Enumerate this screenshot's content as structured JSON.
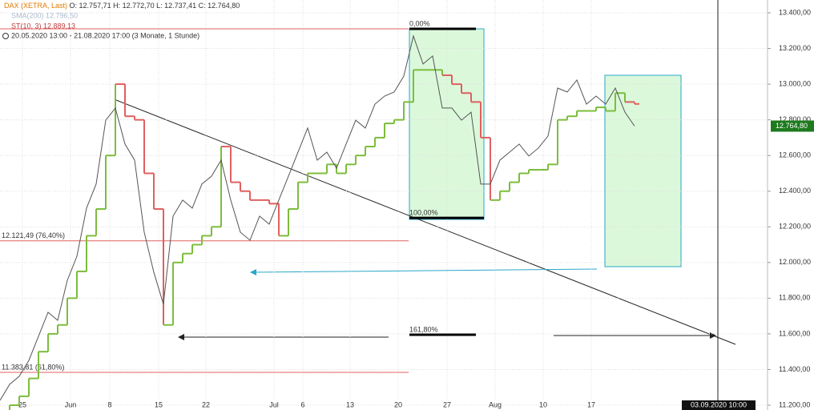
{
  "chart_data": {
    "type": "line",
    "header": {
      "instrument": "DAX (XETRA, Last)",
      "ohlc": "O: 12.757,71  H: 12.772,70  L: 12.737,41  C: 12.764,80",
      "sma": "SMA(200) 12.796,50",
      "st": "ST(10, 3) 12.889,13",
      "range": "20.05.2020 13:00 - 21.08.2020 17:00  (3 Monate, 1 Stunde)"
    },
    "series": [
      {
        "name": "DAX (XETRA, Last)",
        "color": "#555555",
        "values": [
          11227,
          11317,
          11362,
          11451,
          11586,
          11721,
          11676,
          11900,
          12035,
          12305,
          12440,
          12798,
          12866,
          12664,
          12574,
          12170,
          11945,
          11766,
          12260,
          12350,
          12305,
          12440,
          12484,
          12574,
          12350,
          12170,
          12125,
          12260,
          12215,
          12350,
          12484,
          12619,
          12754,
          12574,
          12619,
          12529,
          12664,
          12798,
          12754,
          12888,
          12933,
          12956,
          13045,
          13270,
          13113,
          13158,
          12866,
          12866,
          12798,
          12843,
          12440,
          12440,
          12574,
          12619,
          12664,
          12597,
          12642,
          12709,
          12978,
          12956,
          13023,
          12888,
          12933,
          12888,
          12978,
          12843,
          12764.8
        ]
      },
      {
        "name": "ST(10, 3)",
        "color": "#7cbd3c",
        "values": [
          11150,
          11200,
          11250,
          11350,
          11500,
          11600,
          11650,
          11800,
          11950,
          12150,
          12300,
          12600,
          13000,
          12820,
          12800,
          12500,
          12300,
          11650,
          12000,
          12050,
          12100,
          12150,
          12200,
          12650,
          12450,
          12400,
          12350,
          12350,
          12330,
          12150,
          12300,
          12450,
          12500,
          12500,
          12550,
          12500,
          12550,
          12600,
          12650,
          12700,
          12780,
          12800,
          12900,
          13080,
          13080,
          13080,
          13050,
          13000,
          12950,
          12900,
          12700,
          12350,
          12400,
          12450,
          12500,
          12520,
          12520,
          12550,
          12800,
          12820,
          12850,
          12850,
          12870,
          12850,
          12950,
          12900,
          12889.13
        ]
      }
    ],
    "short_color": "#e06060",
    "xticks": [
      "25",
      "Jun",
      "8",
      "15",
      "22",
      "Jul",
      "6",
      "13",
      "20",
      "27",
      "Aug",
      "10",
      "17"
    ],
    "ylim": [
      11200,
      13400
    ],
    "yticks": [
      {
        "value": 13400,
        "label": "13.400,00"
      },
      {
        "value": 13200,
        "label": "13.200,00"
      },
      {
        "value": 13000,
        "label": "13.000,00"
      },
      {
        "value": 12800,
        "label": "12.800,00"
      },
      {
        "value": 12600,
        "label": "12.600,00"
      },
      {
        "value": 12400,
        "label": "12.400,00"
      },
      {
        "value": 12200,
        "label": "12.200,00"
      },
      {
        "value": 12000,
        "label": "12.000,00"
      },
      {
        "value": 11800,
        "label": "11.800,00"
      },
      {
        "value": 11600,
        "label": "11.600,00"
      },
      {
        "value": 11400,
        "label": "11.400,00"
      },
      {
        "value": 11200,
        "label": "11.200,00"
      }
    ],
    "grid": true,
    "levels": [
      {
        "value": 12121.49,
        "label": "12.121,49 (76,40%)"
      },
      {
        "value": 11383.81,
        "label": "11.383,81 (61,80%)"
      }
    ],
    "fib": [
      {
        "value": 13310,
        "label": "0,00%"
      },
      {
        "value": 12250,
        "label": "100,00%"
      },
      {
        "value": 11595,
        "label": "161,80%"
      }
    ],
    "last": {
      "value": 12764.8,
      "label": "12.764,80"
    },
    "cursor_date": "03.09.2020 10:00"
  }
}
